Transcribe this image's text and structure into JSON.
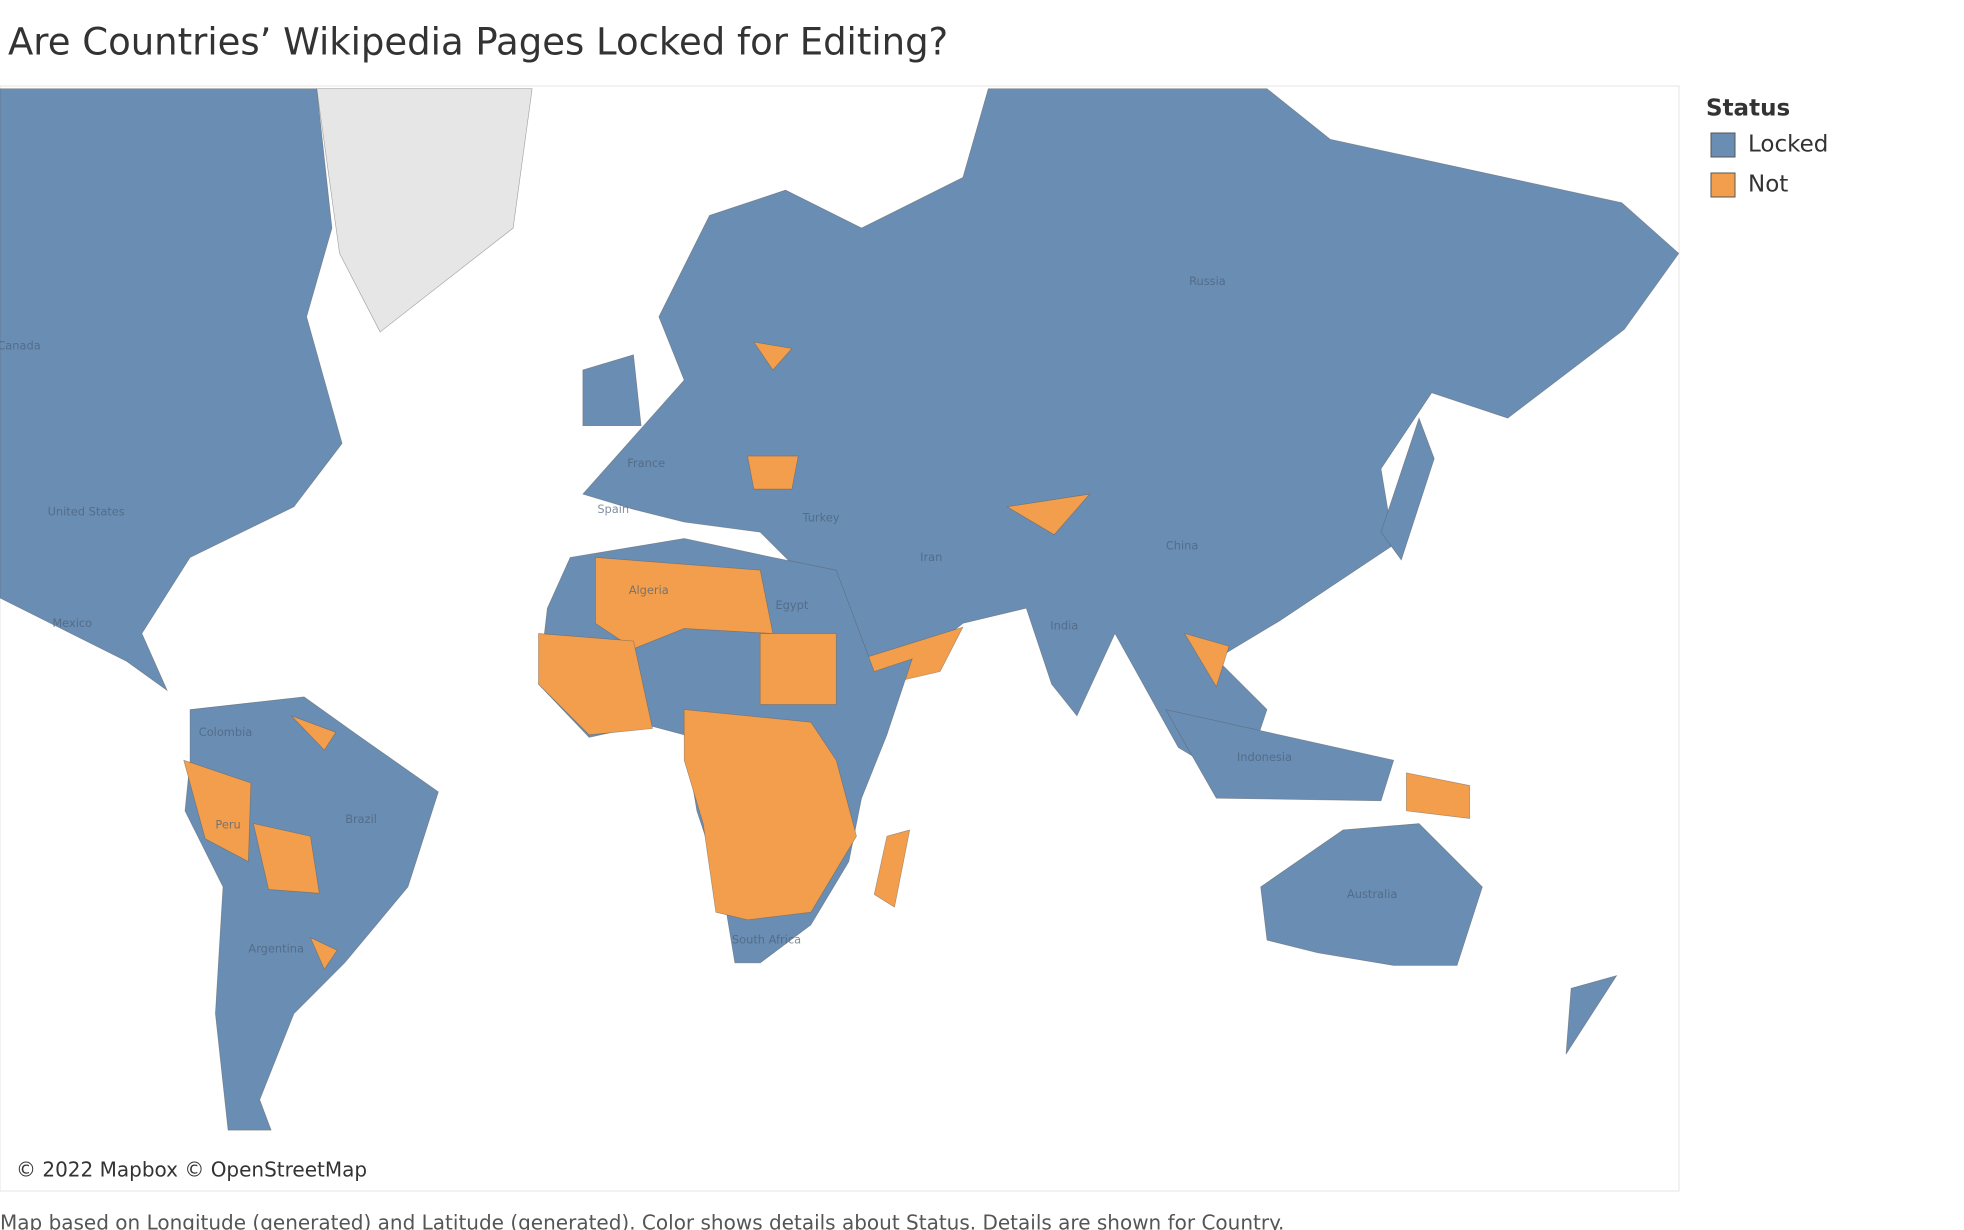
{
  "title": "Are Countries’ Wikipedia Pages Locked for Editing?",
  "legend": {
    "title": "Status",
    "items": [
      {
        "label": "Locked",
        "color": "#6a8db3"
      },
      {
        "label": "Not",
        "color": "#f29e4c"
      }
    ]
  },
  "map": {
    "labels": [
      "Canada",
      "United States",
      "Mexico",
      "Colombia",
      "Peru",
      "Brazil",
      "Argentina",
      "Algeria",
      "Egypt",
      "France",
      "Spain",
      "Turkey",
      "Iran",
      "India",
      "China",
      "Russia",
      "Indonesia",
      "Australia",
      "South Africa"
    ],
    "attribution": "© 2022 Mapbox © OpenStreetMap"
  },
  "caption": "Map based on Longitude (generated) and Latitude (generated).  Color shows details about Status.  Details are shown for Country."
}
